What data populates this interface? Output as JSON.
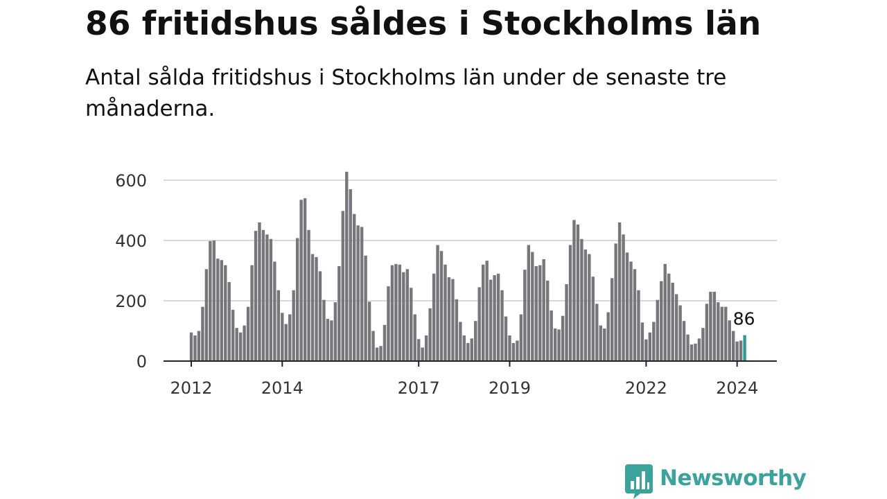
{
  "header": {
    "title": "86 fritidshus såldes i Stockholms län",
    "subtitle": "Antal sålda fritidshus i Stockholms län under de senaste tre månaderna."
  },
  "brand": {
    "name": "Newsworthy",
    "logo_icon": "bar-chart-speech-bubble-icon",
    "color": "#3aa39b"
  },
  "chart_data": {
    "type": "bar",
    "title": "",
    "xlabel": "",
    "ylabel": "",
    "x_start": "2012-01",
    "x_end": "2024-04",
    "ylim": [
      0,
      650
    ],
    "y_ticks": [
      0,
      200,
      400,
      600
    ],
    "x_ticks": [
      "2012",
      "2014",
      "2017",
      "2019",
      "2022",
      "2024"
    ],
    "grid": true,
    "bar_color": "#77767b",
    "highlight_color": "#2a9d95",
    "highlight_label": "86",
    "values": [
      95,
      85,
      100,
      180,
      305,
      398,
      400,
      340,
      335,
      318,
      262,
      170,
      110,
      95,
      118,
      180,
      318,
      432,
      460,
      435,
      420,
      405,
      330,
      235,
      160,
      123,
      155,
      235,
      408,
      535,
      540,
      435,
      355,
      345,
      298,
      203,
      140,
      135,
      195,
      315,
      498,
      628,
      570,
      488,
      450,
      445,
      350,
      197,
      100,
      45,
      50,
      120,
      248,
      318,
      322,
      320,
      295,
      305,
      243,
      155,
      73,
      45,
      85,
      175,
      290,
      385,
      365,
      320,
      278,
      272,
      205,
      130,
      85,
      60,
      75,
      133,
      245,
      320,
      333,
      270,
      285,
      290,
      235,
      148,
      85,
      60,
      68,
      155,
      303,
      385,
      362,
      315,
      318,
      338,
      267,
      168,
      108,
      105,
      150,
      255,
      385,
      468,
      453,
      405,
      370,
      355,
      280,
      190,
      118,
      108,
      162,
      275,
      390,
      460,
      420,
      360,
      330,
      305,
      235,
      128,
      72,
      95,
      130,
      203,
      265,
      322,
      290,
      260,
      222,
      185,
      133,
      88,
      55,
      58,
      75,
      110,
      190,
      230,
      230,
      195,
      180,
      180,
      135,
      100,
      65,
      68,
      86
    ]
  }
}
